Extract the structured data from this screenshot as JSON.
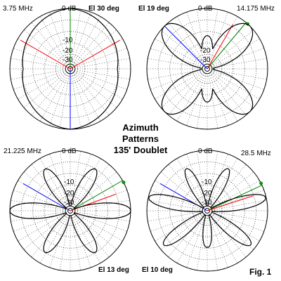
{
  "title": {
    "line1": "Azimuth",
    "line2": "Patterns",
    "line3": "135' Doublet"
  },
  "fig_label": "Fig. 1",
  "colors": {
    "trace": "#000000",
    "grid_dots": "#555555",
    "lobe_direction_red": "#ff0000",
    "lobe_direction_green": "#008000",
    "lobe_direction_blue": "#0000ff",
    "marker": "#00a000"
  },
  "ring_labels": [
    "0 dB",
    "-10",
    "-20",
    "-30"
  ],
  "plots": [
    {
      "freq": "3.75 MHz",
      "elevation": "El 30 deg",
      "position": "top-left",
      "lobe_count": 2,
      "ring_labels_shown": [
        "0 dB",
        "-10",
        "-20",
        "-30"
      ]
    },
    {
      "freq": "14.175 MHz",
      "elevation": "El 19 deg",
      "position": "top-right",
      "lobe_count": 6,
      "ring_labels_shown": [
        "0 dB",
        "-20",
        "-30"
      ]
    },
    {
      "freq": "21.225 MHz",
      "elevation": "El 13 deg",
      "position": "bottom-left",
      "lobe_count": 10,
      "ring_labels_shown": [
        "0 dB",
        "-10",
        "-20",
        "-30"
      ]
    },
    {
      "freq": "28.5 MHz",
      "elevation": "El 10 deg",
      "position": "bottom-right",
      "lobe_count": 10,
      "ring_labels_shown": [
        "0 dB",
        "-10",
        "-20",
        "-30"
      ]
    }
  ]
}
